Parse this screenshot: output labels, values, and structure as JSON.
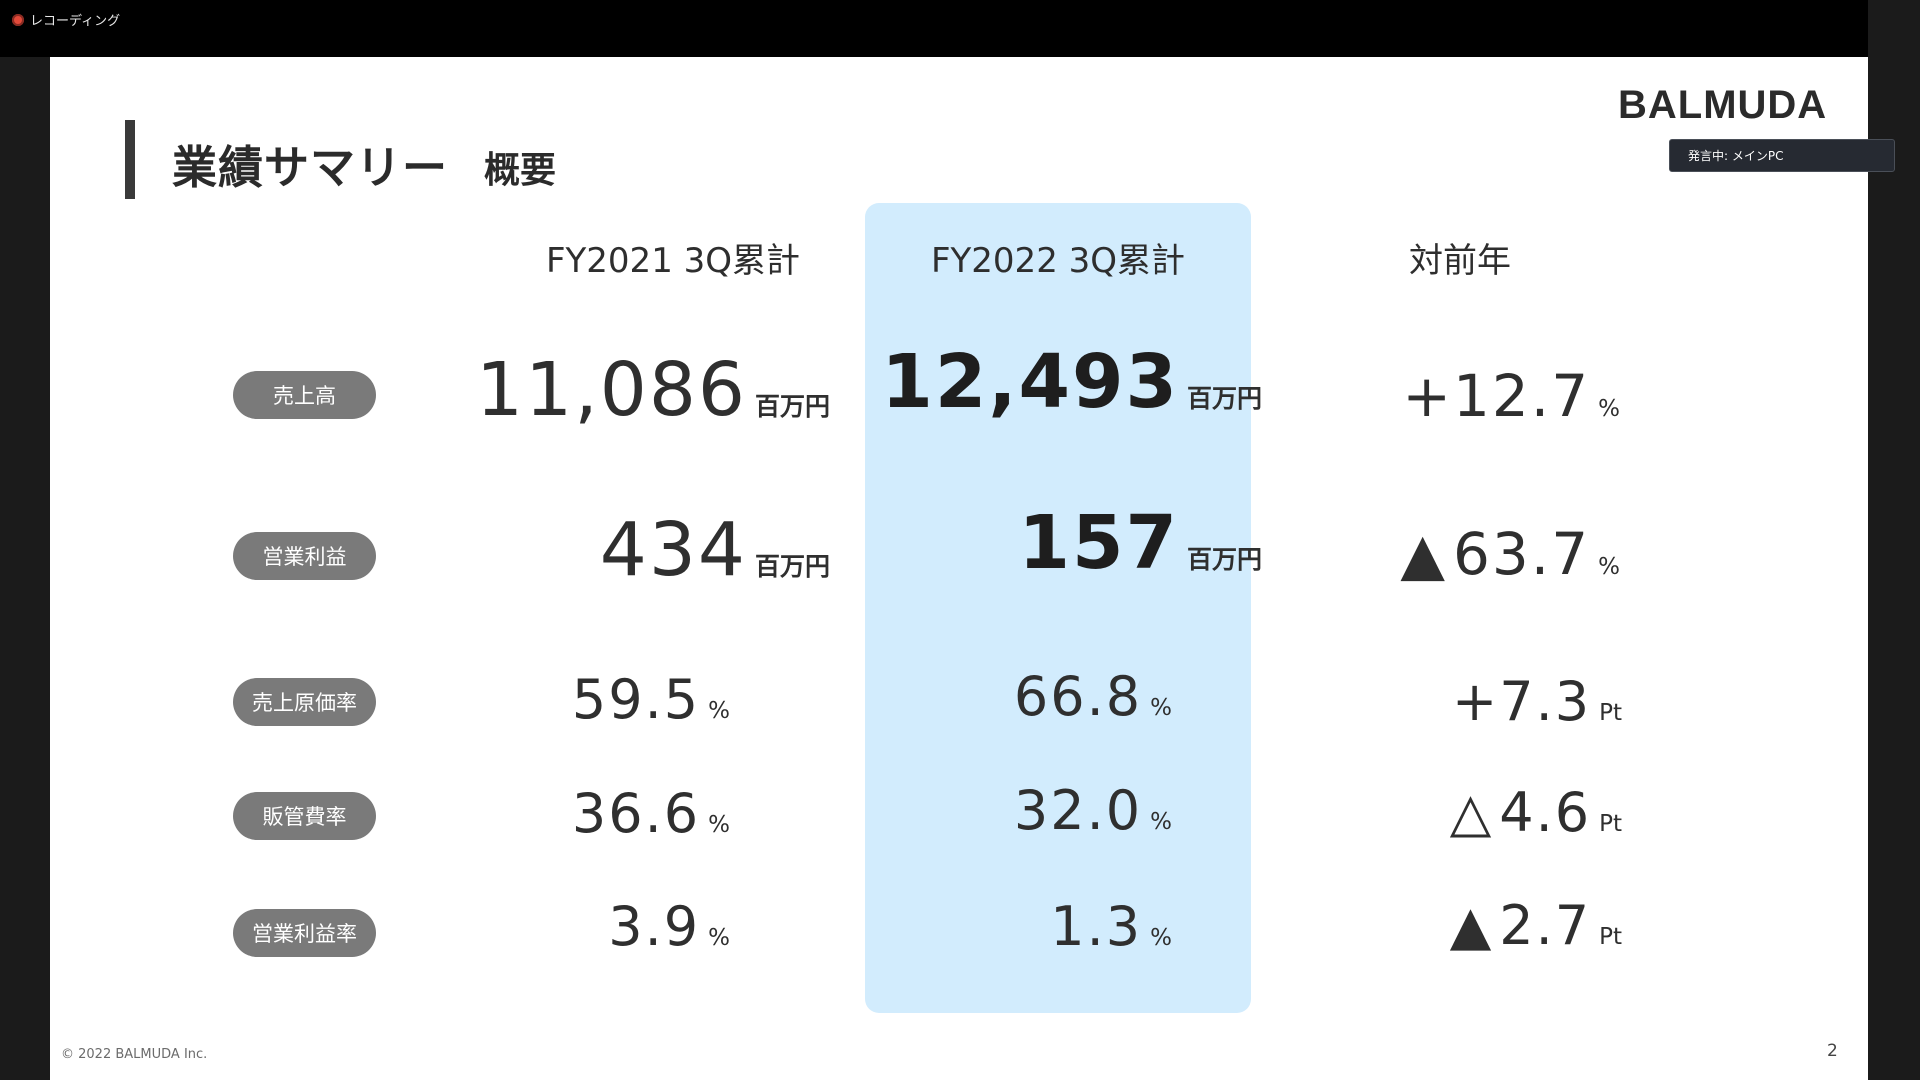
{
  "window": {
    "recording_label": "レコーディング",
    "speaker_label": "発言中: メインPC"
  },
  "slide": {
    "title": "業績サマリー",
    "subtitle": "概要",
    "logo": "BALMUDA",
    "columns": [
      "FY2021 3Q累計",
      "FY2022 3Q累計",
      "対前年"
    ],
    "rows": [
      {
        "label": "売上高",
        "fy2021": {
          "value": "11,086",
          "unit": "百万円"
        },
        "fy2022": {
          "value": "12,493",
          "unit": "百万円"
        },
        "yoy": {
          "value": "+12.7",
          "unit": "%"
        }
      },
      {
        "label": "営業利益",
        "fy2021": {
          "value": "434",
          "unit": "百万円"
        },
        "fy2022": {
          "value": "157",
          "unit": "百万円"
        },
        "yoy": {
          "value": "63.7",
          "unit": "%",
          "marker": "▲"
        }
      },
      {
        "label": "売上原価率",
        "fy2021": {
          "value": "59.5",
          "unit": "%"
        },
        "fy2022": {
          "value": "66.8",
          "unit": "%"
        },
        "yoy": {
          "value": "+7.3",
          "unit": "Pt"
        }
      },
      {
        "label": "販管費率",
        "fy2021": {
          "value": "36.6",
          "unit": "%"
        },
        "fy2022": {
          "value": "32.0",
          "unit": "%"
        },
        "yoy": {
          "value": "4.6",
          "unit": "Pt",
          "marker": "△"
        }
      },
      {
        "label": "営業利益率",
        "fy2021": {
          "value": "3.9",
          "unit": "%"
        },
        "fy2022": {
          "value": "1.3",
          "unit": "%"
        },
        "yoy": {
          "value": "2.7",
          "unit": "Pt",
          "marker": "▲"
        }
      }
    ],
    "copyright": "© 2022 BALMUDA Inc.",
    "page_number": "2",
    "highlight_color": "#d2ecfd"
  }
}
